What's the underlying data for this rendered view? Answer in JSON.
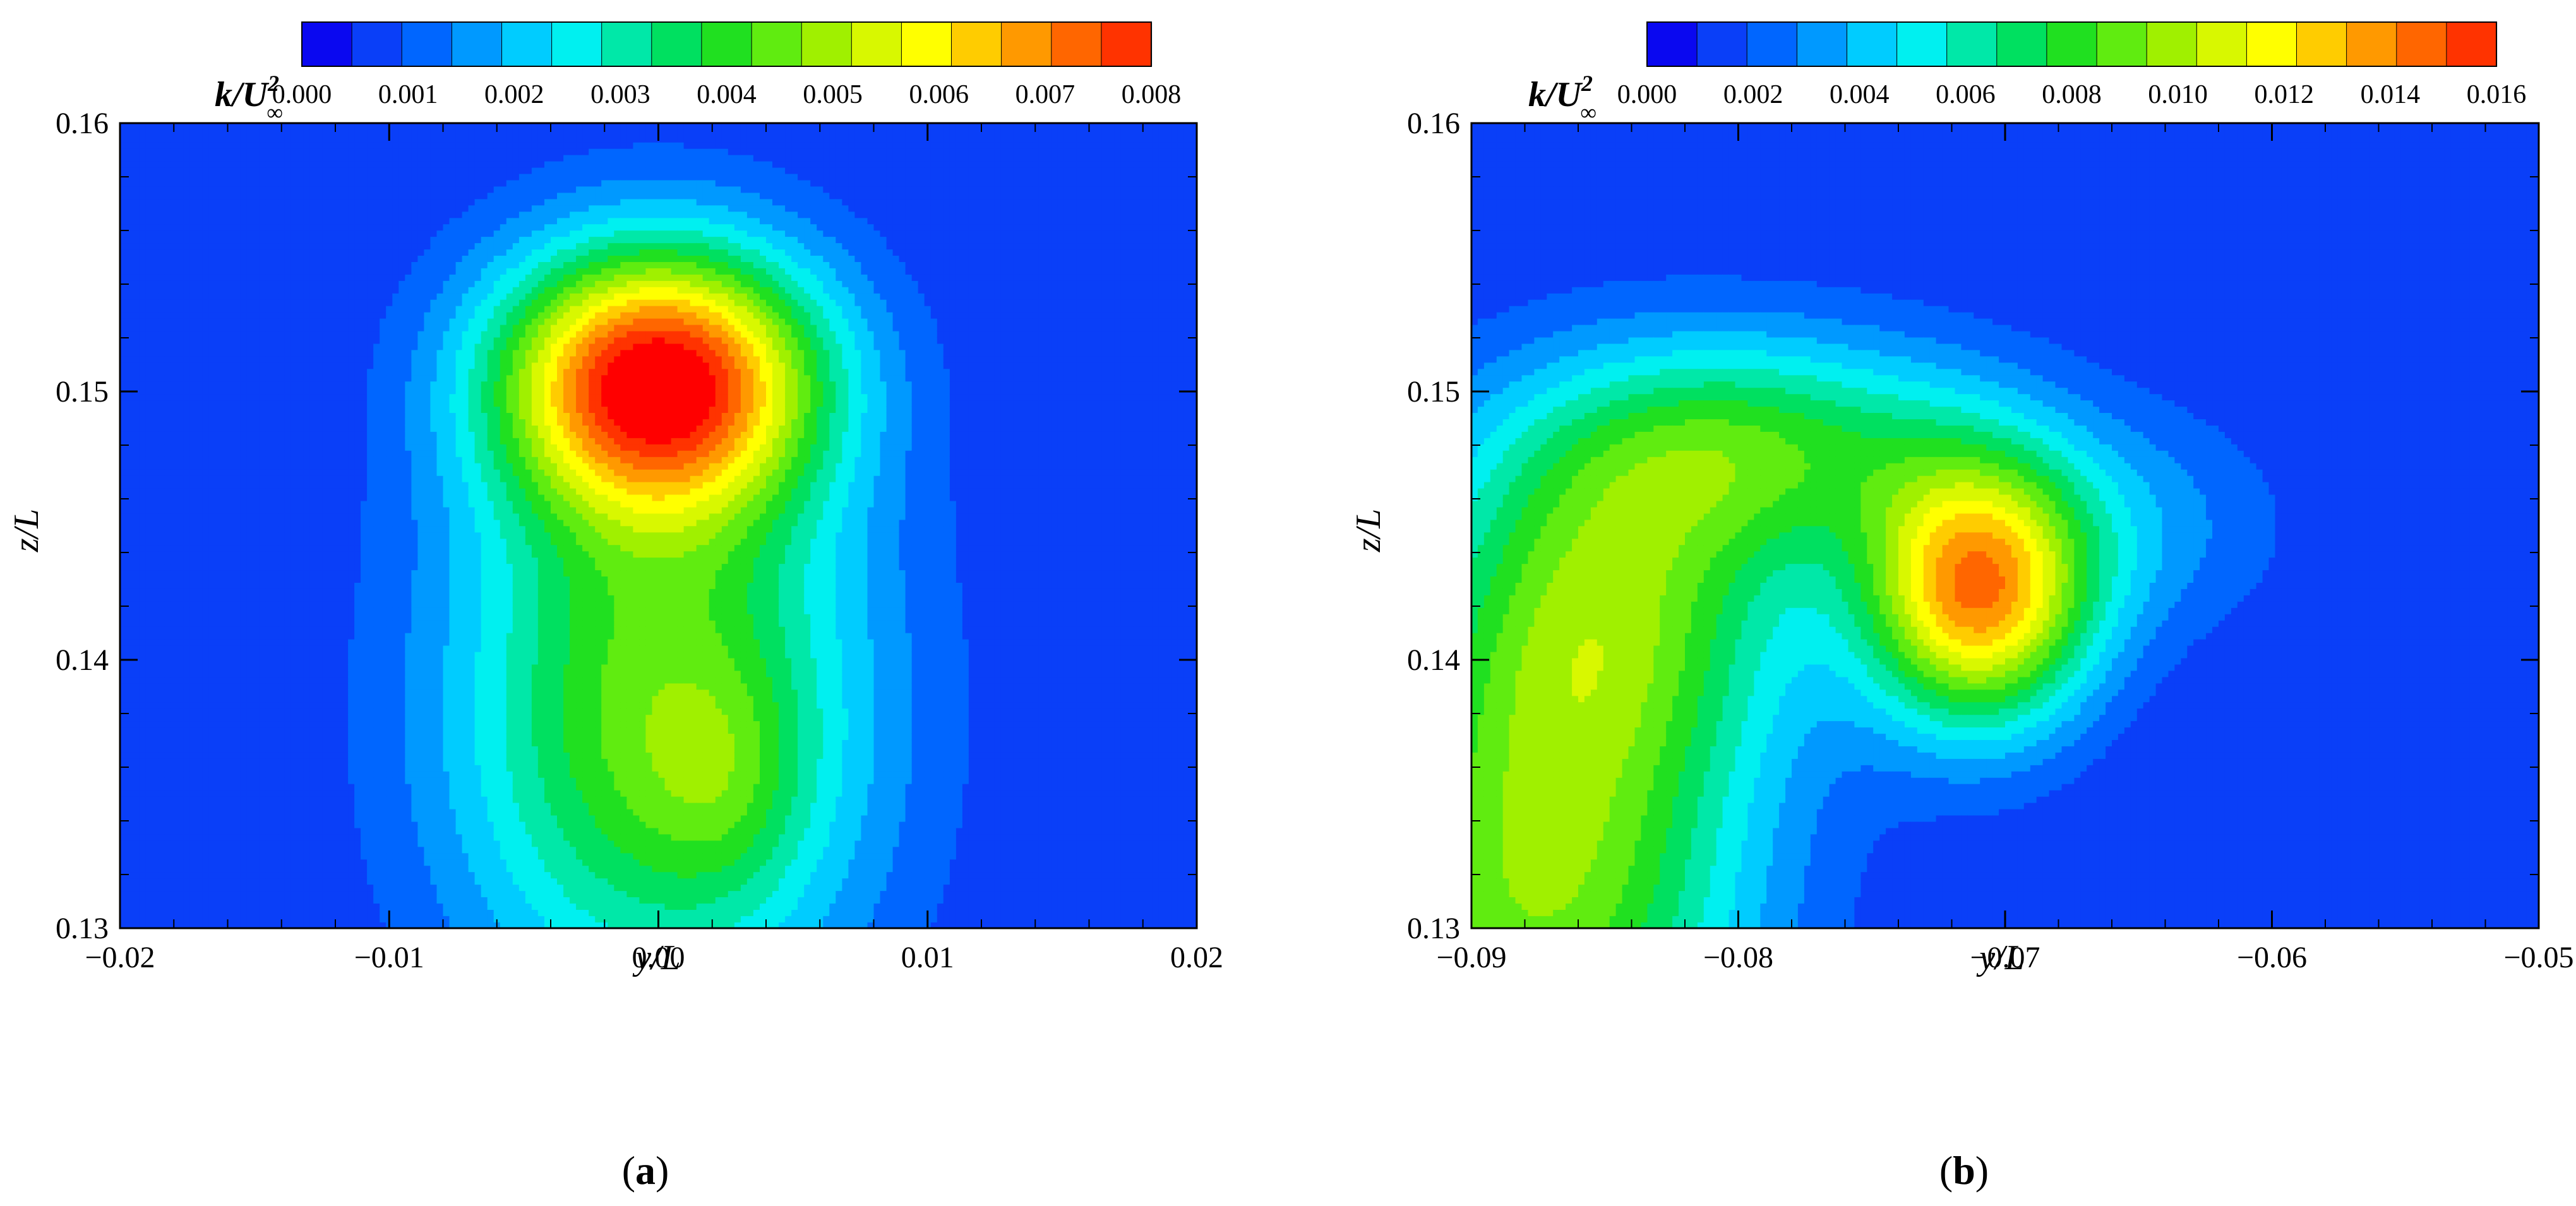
{
  "chart_data": [
    {
      "type": "heatmap",
      "panel": "a",
      "caption_letter": "a",
      "colorbar": {
        "title_base": "k/U",
        "title_sup": "2",
        "title_sub": "∞",
        "ticks": [
          "0.000",
          "0.001",
          "0.002",
          "0.003",
          "0.004",
          "0.005",
          "0.006",
          "0.007",
          "0.008"
        ],
        "range": [
          0,
          0.008
        ],
        "levels": 17
      },
      "xlabel": "y/L",
      "ylabel": "z/L",
      "xlim": [
        -0.02,
        0.02
      ],
      "ylim": [
        0.13,
        0.16
      ],
      "xticks": [
        "−0.02",
        "−0.01",
        "0.00",
        "0.01",
        "0.02"
      ],
      "xtick_values": [
        -0.02,
        -0.01,
        0.0,
        0.01,
        0.02
      ],
      "yticks": [
        "0.13",
        "0.14",
        "0.15",
        "0.16"
      ],
      "ytick_values": [
        0.13,
        0.14,
        0.15,
        0.16
      ],
      "background_value": 0.0005,
      "field": [
        {
          "cy": 0.136,
          "cz": 0.132,
          "sy": 0.006,
          "sz": 0.007,
          "amp": 0.004
        },
        {
          "cy": 0.0,
          "cz": 0.138,
          "sy": 0.0055,
          "sz": 0.008,
          "amp": 0.004
        },
        {
          "cy": 0.0,
          "cz": 0.1505,
          "sy": 0.0042,
          "sz": 0.0035,
          "amp": 0.0072
        },
        {
          "cy": 0.0025,
          "cz": 0.1355,
          "sy": 0.002,
          "sz": 0.003,
          "amp": 0.0008
        }
      ]
    },
    {
      "type": "heatmap",
      "panel": "b",
      "caption_letter": "b",
      "colorbar": {
        "title_base": "k/U",
        "title_sup": "2",
        "title_sub": "∞",
        "ticks": [
          "0.000",
          "0.002",
          "0.004",
          "0.006",
          "0.008",
          "0.010",
          "0.012",
          "0.014",
          "0.016"
        ],
        "range": [
          0,
          0.016
        ],
        "levels": 17
      },
      "xlabel": "y/L",
      "ylabel": "z/L",
      "xlim": [
        -0.09,
        -0.05
      ],
      "ylim": [
        0.13,
        0.16
      ],
      "xticks": [
        "−0.09",
        "−0.08",
        "−0.07",
        "−0.06",
        "−0.05"
      ],
      "xtick_values": [
        -0.09,
        -0.08,
        -0.07,
        -0.06,
        -0.05
      ],
      "yticks": [
        "0.13",
        "0.14",
        "0.15",
        "0.16"
      ],
      "ytick_values": [
        0.13,
        0.14,
        0.15,
        0.16
      ],
      "background_value": 0.001,
      "field": [
        {
          "cy": -0.0875,
          "cz": 0.131,
          "sy": 0.0055,
          "sz": 0.0065,
          "amp": 0.008
        },
        {
          "cy": -0.085,
          "cz": 0.142,
          "sy": 0.005,
          "sz": 0.005,
          "amp": 0.007
        },
        {
          "cy": -0.079,
          "cz": 0.148,
          "sy": 0.006,
          "sz": 0.003,
          "amp": 0.006
        },
        {
          "cy": -0.071,
          "cz": 0.1425,
          "sy": 0.003,
          "sz": 0.0035,
          "amp": 0.0125
        },
        {
          "cy": -0.065,
          "cz": 0.145,
          "sy": 0.004,
          "sz": 0.003,
          "amp": 0.002
        }
      ]
    }
  ]
}
